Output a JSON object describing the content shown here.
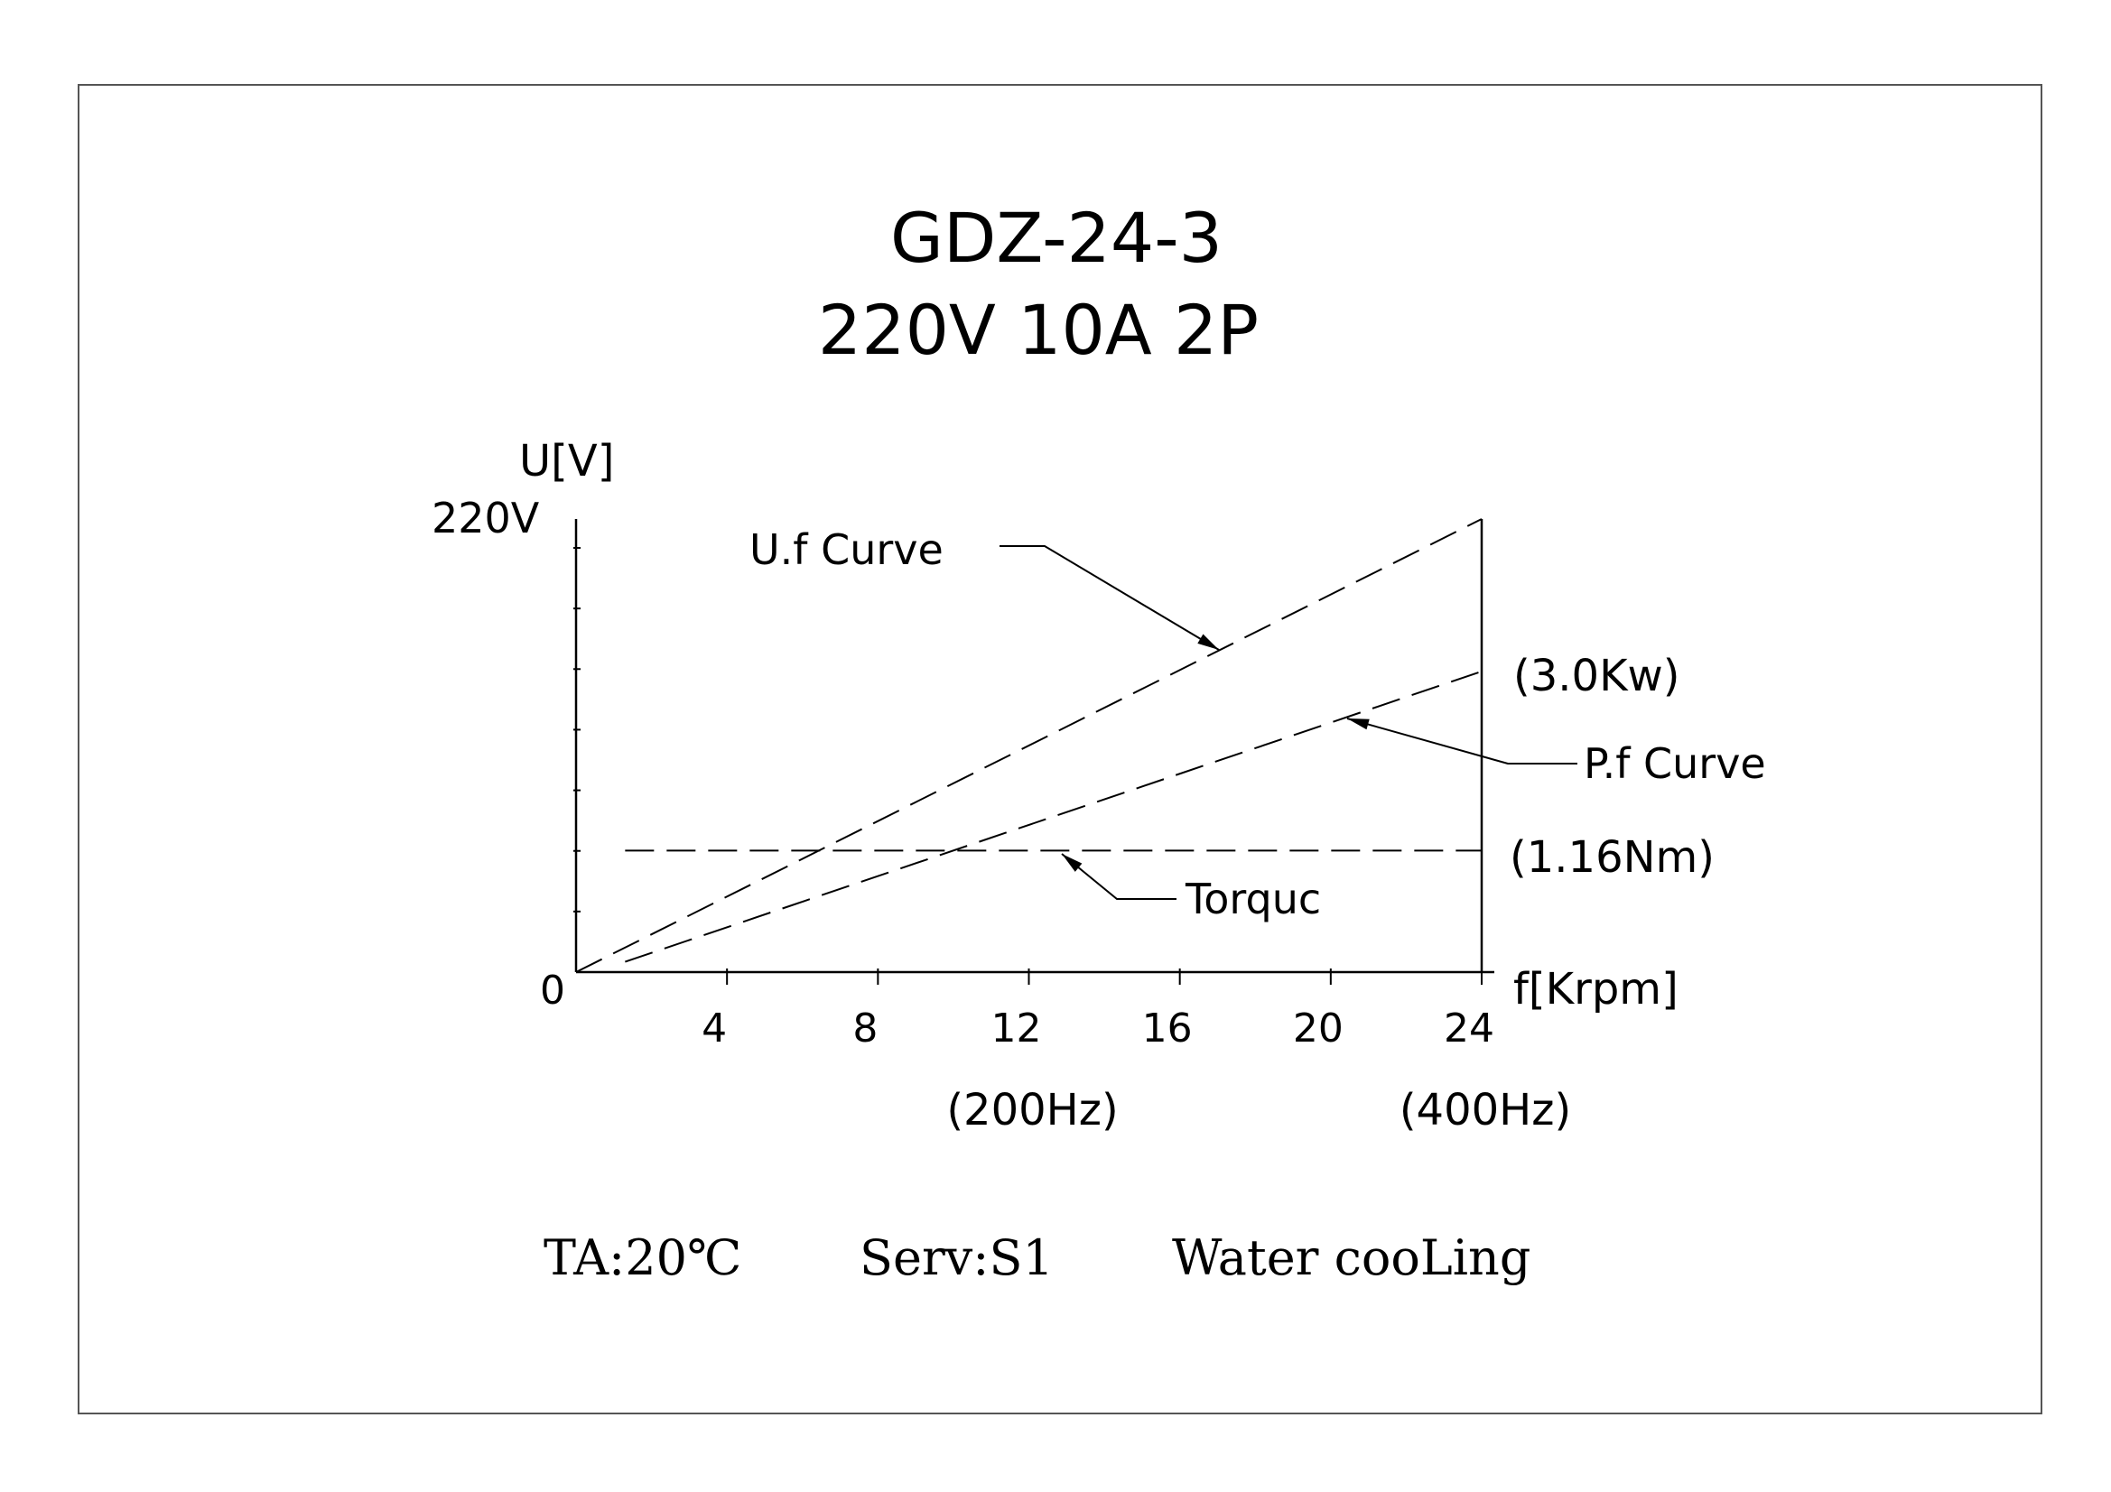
{
  "chart_data": {
    "type": "line",
    "title": "GDZ-24-3",
    "subtitle": "220V  10A 2P",
    "ylabel": "U[V]",
    "y_top_label": "220V",
    "xlabel": "f[Krpm]",
    "origin_label": "0",
    "categories": [
      "4",
      "8",
      "12",
      "16",
      "20",
      "24"
    ],
    "x_ticks": [
      4,
      8,
      12,
      16,
      20,
      24
    ],
    "xlim": [
      0,
      24
    ],
    "ylim": [
      0,
      220
    ],
    "grid": false,
    "frequency_labels": [
      {
        "x": 12,
        "text": "(200Hz)"
      },
      {
        "x": 24,
        "text": "(400Hz)"
      }
    ],
    "series": [
      {
        "name": "U.f Curve",
        "x": [
          0,
          24
        ],
        "y": [
          0,
          220
        ],
        "label_side": "upper-left"
      },
      {
        "name": "P.f Curve",
        "x": [
          1.3,
          24
        ],
        "y": [
          5,
          146
        ],
        "end_label": "(3.0Kw)",
        "label_side": "right"
      },
      {
        "name": "Torquc",
        "x": [
          1.3,
          24
        ],
        "y": [
          59,
          59
        ],
        "end_label": "(1.16Nm)",
        "label_side": "below"
      }
    ]
  },
  "footer": {
    "ambient": "TA:20℃",
    "service": "Serv:S1",
    "cooling": "Water cooLing"
  }
}
